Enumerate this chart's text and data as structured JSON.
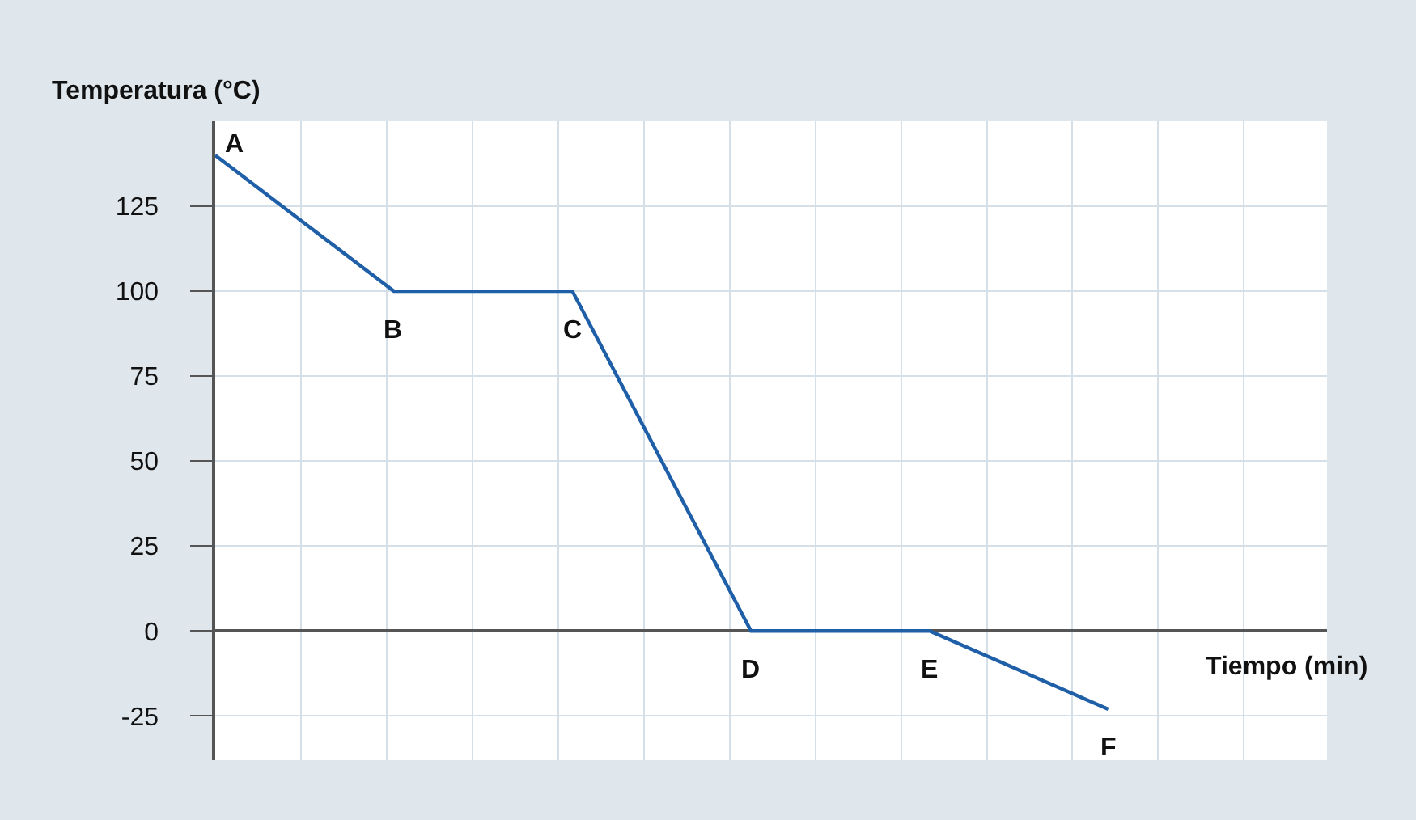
{
  "chart_data": {
    "type": "line",
    "xlabel": "Tiempo (min)",
    "ylabel": "Temperatura (°C)",
    "categories": [
      null,
      null,
      null,
      null,
      null,
      null
    ],
    "series": [
      {
        "color": "#1f5fa8",
        "values": [
          140,
          100,
          100,
          0,
          0,
          -23
        ]
      }
    ],
    "ylim": [
      -38,
      150
    ],
    "yticks": [
      -25,
      0,
      25,
      50,
      75,
      100,
      125
    ],
    "grid": true,
    "tick_labels": "y",
    "marker": "none",
    "line_style": "solid",
    "annotations": [
      "A",
      "B",
      "C",
      "D",
      "E",
      "F"
    ]
  }
}
